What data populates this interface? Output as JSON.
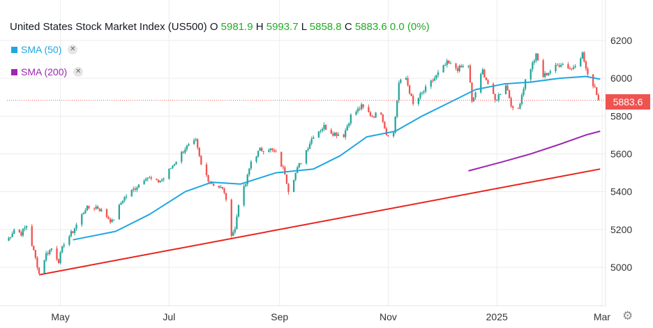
{
  "header": {
    "title": "United States Stock Market Index (US500)",
    "o_label": "O",
    "o_value": "5981.9",
    "h_label": "H",
    "h_value": "5993.7",
    "l_label": "L",
    "l_value": "5858.8",
    "c_label": "C",
    "c_value": "5883.6",
    "change": "0.0 (0%)"
  },
  "legend": [
    {
      "label": "SMA (50)",
      "color": "#1ea7e1",
      "close_icon": "close-icon"
    },
    {
      "label": "SMA (200)",
      "color": "#9c27b0",
      "close_icon": "close-icon"
    }
  ],
  "last_price": "5883.6",
  "settings_icon": "gear-icon",
  "colors": {
    "up": "#26a69a",
    "down": "#ef5350",
    "trendline": "#e8221c",
    "positive_text": "#22ab24"
  },
  "chart_data": {
    "type": "candlestick",
    "x_axis": {
      "type": "date",
      "range": [
        "2024-04-01",
        "2025-03-03"
      ],
      "tick_labels": [
        {
          "label": "May",
          "date": "2024-05-01"
        },
        {
          "label": "Jul",
          "date": "2024-07-01"
        },
        {
          "label": "Sep",
          "date": "2024-09-01"
        },
        {
          "label": "Nov",
          "date": "2024-11-01"
        },
        {
          "label": "2025",
          "date": "2025-01-01"
        },
        {
          "label": "Mar",
          "date": "2025-03-01"
        }
      ]
    },
    "y_axis": {
      "range": [
        4900,
        6300
      ],
      "ticks": [
        5000,
        5200,
        5400,
        5600,
        5800,
        6000,
        6200
      ],
      "position": "right"
    },
    "grid": true,
    "last_price_line": 5883.6,
    "close_series": [
      {
        "date": "2024-04-01",
        "close": 5140
      },
      {
        "date": "2024-04-05",
        "close": 5200
      },
      {
        "date": "2024-04-09",
        "close": 5180
      },
      {
        "date": "2024-04-12",
        "close": 5220
      },
      {
        "date": "2024-04-15",
        "close": 5120
      },
      {
        "date": "2024-04-18",
        "close": 5010
      },
      {
        "date": "2024-04-19",
        "close": 4967
      },
      {
        "date": "2024-04-23",
        "close": 5070
      },
      {
        "date": "2024-04-26",
        "close": 5100
      },
      {
        "date": "2024-04-30",
        "close": 5035
      },
      {
        "date": "2024-05-03",
        "close": 5130
      },
      {
        "date": "2024-05-08",
        "close": 5190
      },
      {
        "date": "2024-05-15",
        "close": 5310
      },
      {
        "date": "2024-05-21",
        "close": 5320
      },
      {
        "date": "2024-05-24",
        "close": 5300
      },
      {
        "date": "2024-05-30",
        "close": 5240
      },
      {
        "date": "2024-06-05",
        "close": 5360
      },
      {
        "date": "2024-06-12",
        "close": 5420
      },
      {
        "date": "2024-06-18",
        "close": 5480
      },
      {
        "date": "2024-06-24",
        "close": 5450
      },
      {
        "date": "2024-06-28",
        "close": 5470
      },
      {
        "date": "2024-07-03",
        "close": 5540
      },
      {
        "date": "2024-07-10",
        "close": 5630
      },
      {
        "date": "2024-07-16",
        "close": 5665
      },
      {
        "date": "2024-07-19",
        "close": 5540
      },
      {
        "date": "2024-07-24",
        "close": 5450
      },
      {
        "date": "2024-07-30",
        "close": 5420
      },
      {
        "date": "2024-08-01",
        "close": 5400
      },
      {
        "date": "2024-08-05",
        "close": 5180
      },
      {
        "date": "2024-08-07",
        "close": 5200
      },
      {
        "date": "2024-08-09",
        "close": 5340
      },
      {
        "date": "2024-08-13",
        "close": 5440
      },
      {
        "date": "2024-08-16",
        "close": 5560
      },
      {
        "date": "2024-08-21",
        "close": 5620
      },
      {
        "date": "2024-08-26",
        "close": 5630
      },
      {
        "date": "2024-08-30",
        "close": 5600
      },
      {
        "date": "2024-09-04",
        "close": 5500
      },
      {
        "date": "2024-09-06",
        "close": 5410
      },
      {
        "date": "2024-09-11",
        "close": 5520
      },
      {
        "date": "2024-09-16",
        "close": 5620
      },
      {
        "date": "2024-09-20",
        "close": 5700
      },
      {
        "date": "2024-09-26",
        "close": 5745
      },
      {
        "date": "2024-10-01",
        "close": 5710
      },
      {
        "date": "2024-10-07",
        "close": 5700
      },
      {
        "date": "2024-10-11",
        "close": 5800
      },
      {
        "date": "2024-10-17",
        "close": 5850
      },
      {
        "date": "2024-10-23",
        "close": 5800
      },
      {
        "date": "2024-10-28",
        "close": 5820
      },
      {
        "date": "2024-10-31",
        "close": 5705
      },
      {
        "date": "2024-11-04",
        "close": 5710
      },
      {
        "date": "2024-11-07",
        "close": 5975
      },
      {
        "date": "2024-11-11",
        "close": 6000
      },
      {
        "date": "2024-11-15",
        "close": 5860
      },
      {
        "date": "2024-11-20",
        "close": 5920
      },
      {
        "date": "2024-11-27",
        "close": 6000
      },
      {
        "date": "2024-12-04",
        "close": 6080
      },
      {
        "date": "2024-12-10",
        "close": 6050
      },
      {
        "date": "2024-12-16",
        "close": 6070
      },
      {
        "date": "2024-12-18",
        "close": 5870
      },
      {
        "date": "2024-12-24",
        "close": 6040
      },
      {
        "date": "2024-12-31",
        "close": 5880
      },
      {
        "date": "2025-01-06",
        "close": 5970
      },
      {
        "date": "2025-01-10",
        "close": 5830
      },
      {
        "date": "2025-01-13",
        "close": 5840
      },
      {
        "date": "2025-01-17",
        "close": 5990
      },
      {
        "date": "2025-01-23",
        "close": 6120
      },
      {
        "date": "2025-01-27",
        "close": 6010
      },
      {
        "date": "2025-01-31",
        "close": 6040
      },
      {
        "date": "2025-02-06",
        "close": 6080
      },
      {
        "date": "2025-02-12",
        "close": 6050
      },
      {
        "date": "2025-02-18",
        "close": 6130
      },
      {
        "date": "2025-02-21",
        "close": 6010
      },
      {
        "date": "2025-02-25",
        "close": 5955
      },
      {
        "date": "2025-02-27",
        "close": 5883.6
      }
    ],
    "series": [
      {
        "name": "SMA (50)",
        "type": "line",
        "points": [
          {
            "date": "2024-05-08",
            "value": 5145
          },
          {
            "date": "2024-06-01",
            "value": 5190
          },
          {
            "date": "2024-06-20",
            "value": 5280
          },
          {
            "date": "2024-07-10",
            "value": 5400
          },
          {
            "date": "2024-07-25",
            "value": 5450
          },
          {
            "date": "2024-08-10",
            "value": 5440
          },
          {
            "date": "2024-08-30",
            "value": 5500
          },
          {
            "date": "2024-09-20",
            "value": 5520
          },
          {
            "date": "2024-10-05",
            "value": 5590
          },
          {
            "date": "2024-10-20",
            "value": 5690
          },
          {
            "date": "2024-11-05",
            "value": 5720
          },
          {
            "date": "2024-11-20",
            "value": 5800
          },
          {
            "date": "2024-12-05",
            "value": 5870
          },
          {
            "date": "2024-12-20",
            "value": 5940
          },
          {
            "date": "2025-01-05",
            "value": 5970
          },
          {
            "date": "2025-01-20",
            "value": 5980
          },
          {
            "date": "2025-02-05",
            "value": 6000
          },
          {
            "date": "2025-02-20",
            "value": 6010
          },
          {
            "date": "2025-02-28",
            "value": 5995
          }
        ]
      },
      {
        "name": "SMA (200)",
        "type": "line",
        "points": [
          {
            "date": "2024-12-16",
            "value": 5510
          },
          {
            "date": "2025-01-05",
            "value": 5560
          },
          {
            "date": "2025-01-20",
            "value": 5600
          },
          {
            "date": "2025-02-05",
            "value": 5650
          },
          {
            "date": "2025-02-20",
            "value": 5700
          },
          {
            "date": "2025-02-28",
            "value": 5720
          }
        ]
      },
      {
        "type": "trendline",
        "points": [
          {
            "date": "2024-04-19",
            "value": 4960
          },
          {
            "date": "2025-02-28",
            "value": 5520
          }
        ]
      }
    ]
  }
}
